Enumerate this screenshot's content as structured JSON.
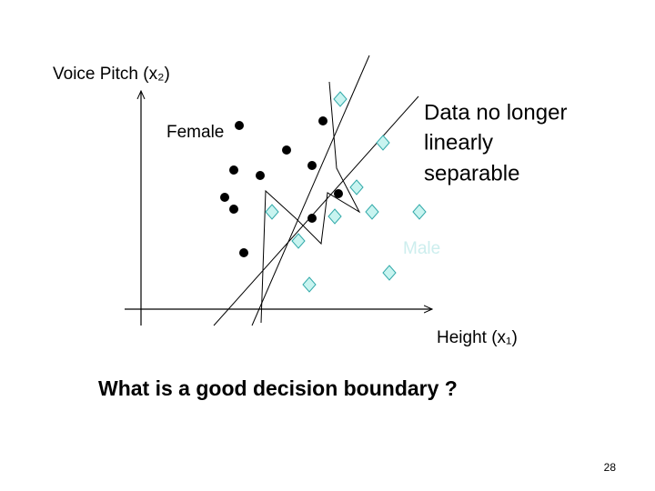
{
  "axes": {
    "y_label": "Voice Pitch (x₂)",
    "x_label": "Height (x₁)"
  },
  "classes": {
    "female": "Female",
    "male": "Male"
  },
  "note": {
    "lines": [
      "Data no longer",
      "linearly",
      "separable"
    ]
  },
  "question": "What is a good decision boundary ?",
  "page_number": "28"
}
